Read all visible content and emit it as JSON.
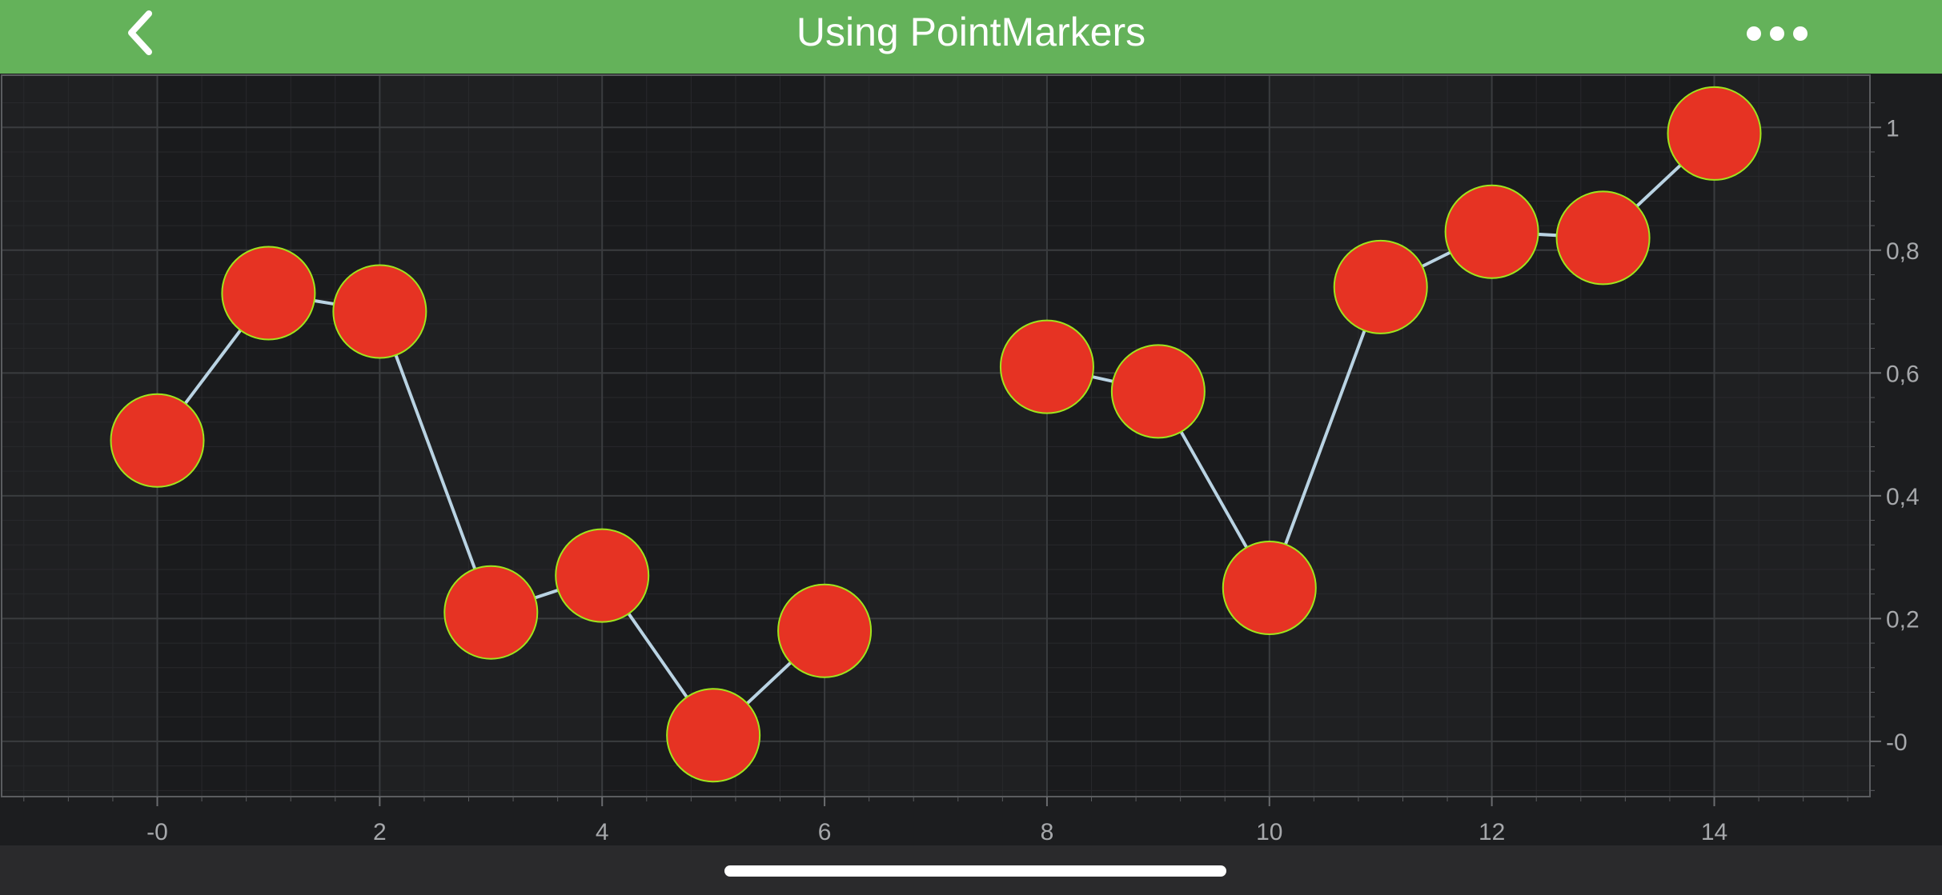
{
  "header": {
    "title": "Using PointMarkers",
    "back_icon": "chevron-left-icon",
    "more_icon": "more-horizontal-icon"
  },
  "colors": {
    "header_bg": "#64b25a",
    "plot_bg": "#1c1d1f",
    "line": "#b9d3e3",
    "marker_fill": "#e63323",
    "marker_stroke": "#9fe51d",
    "axis_text": "#a6a8ab"
  },
  "chart_data": {
    "type": "scatter",
    "x": [
      0,
      1,
      2,
      3,
      4,
      5,
      6,
      8,
      9,
      10,
      11,
      12,
      13,
      14
    ],
    "series": [
      {
        "values": [
          0.49,
          0.73,
          0.7,
          0.21,
          0.27,
          0.01,
          0.18,
          0.61,
          0.57,
          0.25,
          0.74,
          0.83,
          0.82,
          0.99
        ],
        "segments": [
          [
            0,
            6
          ],
          [
            7,
            13
          ]
        ],
        "style": "line with circle point markers"
      }
    ],
    "xlim": [
      -1.4,
      15.4
    ],
    "ylim": [
      -0.09,
      1.085
    ],
    "x_ticks": [
      {
        "value": 0,
        "label": "-0"
      },
      {
        "value": 2,
        "label": "2"
      },
      {
        "value": 4,
        "label": "4"
      },
      {
        "value": 6,
        "label": "6"
      },
      {
        "value": 8,
        "label": "8"
      },
      {
        "value": 10,
        "label": "10"
      },
      {
        "value": 12,
        "label": "12"
      },
      {
        "value": 14,
        "label": "14"
      }
    ],
    "y_ticks": [
      {
        "value": 0,
        "label": "-0"
      },
      {
        "value": 0.2,
        "label": "0,2"
      },
      {
        "value": 0.4,
        "label": "0,4"
      },
      {
        "value": 0.6,
        "label": "0,6"
      },
      {
        "value": 0.8,
        "label": "0,8"
      },
      {
        "value": 1.0,
        "label": "1"
      }
    ],
    "grid": true,
    "y_axis_position": "right",
    "legend": "none"
  }
}
